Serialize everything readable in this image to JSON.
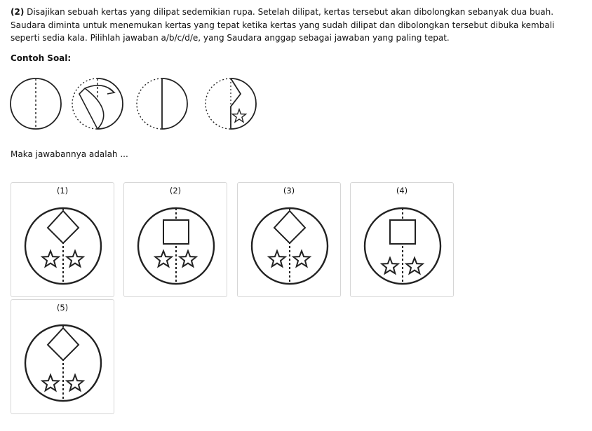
{
  "question": {
    "number": "(2)",
    "text": "Disajikan sebuah kertas yang dilipat sedemikian rupa. Setelah dilipat, kertas tersebut akan dibolongkan sebanyak dua buah. Saudara diminta untuk menemukan kertas yang tepat ketika kertas yang sudah dilipat dan dibolongkan tersebut dibuka kembali seperti sedia kala. Pilihlah jawaban a/b/c/d/e, yang Saudara anggap sebagai jawaban yang paling tepat."
  },
  "example_label": "Contoh Soal:",
  "answer_prompt": "Maka jawabannya adalah ...",
  "options": [
    {
      "label": "(1)",
      "top_shape": "diamond",
      "stars": "raised"
    },
    {
      "label": "(2)",
      "top_shape": "square",
      "stars": "raised"
    },
    {
      "label": "(3)",
      "top_shape": "diamond",
      "stars": "raised"
    },
    {
      "label": "(4)",
      "top_shape": "square",
      "stars": "lowered"
    },
    {
      "label": "(5)",
      "top_shape": "diamond",
      "stars": "lowered"
    }
  ]
}
